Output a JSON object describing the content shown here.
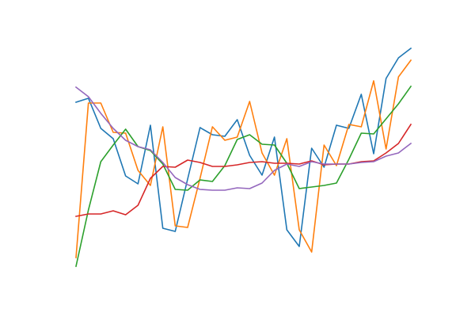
{
  "chart_data": {
    "type": "line",
    "x": [
      0,
      1,
      2,
      3,
      4,
      5,
      6,
      7,
      8,
      9,
      10,
      11,
      12,
      13,
      14,
      15,
      16,
      17,
      18,
      19,
      20,
      21,
      22,
      23,
      24,
      25,
      26,
      27
    ],
    "xlim": [
      0,
      27
    ],
    "ylim": [
      0,
      400
    ],
    "series": [
      {
        "color": "#1f77b4",
        "values": [
          271,
          276,
          238,
          225,
          178,
          168,
          242,
          112,
          108,
          174,
          239,
          230,
          228,
          249,
          204,
          179,
          227,
          110,
          89,
          213,
          189,
          242,
          238,
          281,
          206,
          301,
          327,
          339
        ]
      },
      {
        "color": "#ff7f0e",
        "values": [
          75,
          270,
          270,
          233,
          232,
          185,
          166,
          240,
          115,
          113,
          175,
          240,
          223,
          227,
          272,
          207,
          179,
          225,
          110,
          82,
          217,
          191,
          243,
          240,
          298,
          212,
          303,
          324
        ]
      },
      {
        "color": "#2ca02c",
        "values": [
          64,
          135,
          196,
          217,
          237,
          215,
          210,
          193,
          161,
          160,
          173,
          171,
          191,
          224,
          230,
          218,
          217,
          194,
          162,
          164,
          166,
          169,
          199,
          232,
          231,
          250,
          269,
          291
        ]
      },
      {
        "color": "#d62728",
        "values": [
          127,
          130,
          130,
          134,
          129,
          141,
          175,
          190,
          189,
          198,
          195,
          190,
          190,
          192,
          195,
          196,
          194,
          194,
          193,
          197,
          192,
          193,
          193,
          196,
          197,
          207,
          219,
          243
        ]
      },
      {
        "color": "#9467bd",
        "values": [
          290,
          278,
          257,
          238,
          223,
          215,
          211,
          195,
          176,
          167,
          161,
          160,
          160,
          163,
          162,
          169,
          185,
          193,
          190,
          196,
          193,
          193,
          193,
          195,
          196,
          203,
          207,
          219
        ]
      }
    ]
  }
}
